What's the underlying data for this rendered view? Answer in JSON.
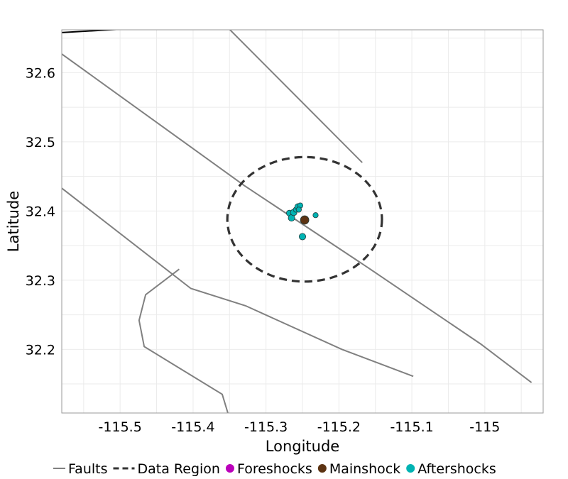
{
  "chart_data": {
    "type": "scatter",
    "title": "",
    "xlabel": "Longitude",
    "ylabel": "Latitude",
    "xlim": [
      -115.58,
      -114.92
    ],
    "ylim": [
      32.108,
      32.662
    ],
    "xticks": [
      -115.5,
      -115.4,
      -115.3,
      -115.2,
      -115.1,
      -115.0
    ],
    "xtick_labels": [
      "-115.5",
      "-115.4",
      "-115.3",
      "-115.2",
      "-115.1",
      "-115"
    ],
    "yticks": [
      32.2,
      32.3,
      32.4,
      32.5,
      32.6
    ],
    "ytick_labels": [
      "32.2",
      "32.3",
      "32.4",
      "32.5",
      "32.6"
    ],
    "grid": true,
    "legend_position": "bottom",
    "legend": [
      {
        "label": "Faults",
        "kind": "line",
        "color": "#808080"
      },
      {
        "label": "Data Region",
        "kind": "dashed-line",
        "color": "#333333"
      },
      {
        "label": "Foreshocks",
        "kind": "point",
        "color": "#bb00bb"
      },
      {
        "label": "Mainshock",
        "kind": "point",
        "color": "#5c3312"
      },
      {
        "label": "Aftershocks",
        "kind": "point",
        "color": "#00b3b3"
      }
    ],
    "faults": [
      {
        "color": "#000000",
        "points": [
          [
            -115.58,
            32.658
          ],
          [
            -115.43,
            32.667
          ]
        ]
      },
      {
        "color": "#808080",
        "points": [
          [
            -115.355,
            32.668
          ],
          [
            -115.168,
            32.47
          ]
        ]
      },
      {
        "color": "#808080",
        "points": [
          [
            -115.58,
            32.627
          ],
          [
            -115.33,
            32.437
          ],
          [
            -115.16,
            32.318
          ],
          [
            -115.006,
            32.208
          ],
          [
            -114.936,
            32.152
          ]
        ]
      },
      {
        "color": "#808080",
        "points": [
          [
            -115.58,
            32.433
          ],
          [
            -115.403,
            32.288
          ],
          [
            -115.328,
            32.263
          ],
          [
            -115.196,
            32.2
          ],
          [
            -115.098,
            32.161
          ]
        ]
      },
      {
        "color": "#808080",
        "points": [
          [
            -115.419,
            32.316
          ],
          [
            -115.465,
            32.279
          ],
          [
            -115.474,
            32.242
          ],
          [
            -115.467,
            32.204
          ],
          [
            -115.36,
            32.135
          ],
          [
            -115.35,
            32.1
          ]
        ]
      }
    ],
    "data_region": {
      "center": [
        -115.247,
        32.388
      ],
      "radius_lon": 0.106,
      "radius_lat": 0.09
    },
    "mainshock": [
      {
        "x": -115.247,
        "y": 32.387,
        "size": 1.3
      }
    ],
    "foreshocks": [],
    "aftershocks": [
      {
        "x": -115.268,
        "y": 32.397,
        "size": 0.9
      },
      {
        "x": -115.265,
        "y": 32.39,
        "size": 1.0
      },
      {
        "x": -115.262,
        "y": 32.398,
        "size": 1.0
      },
      {
        "x": -115.259,
        "y": 32.402,
        "size": 0.8
      },
      {
        "x": -115.256,
        "y": 32.406,
        "size": 1.0
      },
      {
        "x": -115.253,
        "y": 32.408,
        "size": 0.8
      },
      {
        "x": -115.255,
        "y": 32.402,
        "size": 0.8
      },
      {
        "x": -115.232,
        "y": 32.394,
        "size": 0.8
      },
      {
        "x": -115.25,
        "y": 32.363,
        "size": 1.0
      }
    ]
  }
}
